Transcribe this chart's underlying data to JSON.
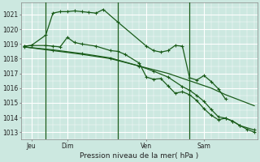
{
  "background_color": "#cce8e0",
  "grid_color": "#ffffff",
  "line_color": "#1a5c1a",
  "title": "Pression niveau de la mer( hPa )",
  "xlabel_ticks": [
    "Jeu",
    "Dim",
    "Ven",
    "Sam"
  ],
  "xlabel_tick_positions": [
    0.5,
    3.0,
    8.5,
    12.5
  ],
  "vline_positions": [
    1.5,
    6.5,
    11.5
  ],
  "ylim": [
    1012.5,
    1021.8
  ],
  "yticks": [
    1013,
    1014,
    1015,
    1016,
    1017,
    1018,
    1019,
    1020,
    1021
  ],
  "xlim": [
    -0.2,
    16.2
  ],
  "line1_x": [
    0,
    0.5,
    1.5,
    2.0,
    2.5,
    3.0,
    3.5,
    4.0,
    4.5,
    5.0,
    5.5,
    6.5,
    8.5,
    9.0,
    9.5,
    10.0,
    10.5,
    11.0,
    11.5,
    12.0,
    12.5,
    13.0,
    13.5,
    14.0
  ],
  "line1_y": [
    1018.85,
    1018.9,
    1019.6,
    1021.1,
    1021.2,
    1021.2,
    1021.25,
    1021.2,
    1021.15,
    1021.1,
    1021.35,
    1020.5,
    1018.85,
    1018.55,
    1018.45,
    1018.55,
    1018.9,
    1018.85,
    1016.7,
    1016.55,
    1016.85,
    1016.45,
    1015.95,
    1015.25
  ],
  "line2_x": [
    0,
    2,
    4,
    6,
    8,
    10,
    11.5,
    13,
    14,
    16
  ],
  "line2_y": [
    1018.8,
    1018.55,
    1018.3,
    1018.0,
    1017.5,
    1017.0,
    1016.5,
    1016.0,
    1015.55,
    1014.8
  ],
  "line3_x": [
    0,
    0.5,
    1.5,
    2.0,
    2.5,
    3.0,
    3.5,
    4.0,
    5.0,
    6.0,
    6.5,
    7.0,
    8.0,
    8.5,
    9.0,
    9.5,
    10.0,
    10.5,
    11.0,
    11.5,
    12.0,
    12.5,
    13.0,
    13.5,
    14.0,
    14.5,
    15.0,
    16.0
  ],
  "line3_y": [
    1018.85,
    1018.9,
    1018.9,
    1018.85,
    1018.8,
    1019.45,
    1019.1,
    1019.0,
    1018.85,
    1018.55,
    1018.5,
    1018.3,
    1017.7,
    1016.75,
    1016.6,
    1016.65,
    1016.15,
    1015.65,
    1015.75,
    1015.55,
    1015.15,
    1014.6,
    1014.15,
    1013.85,
    1013.95,
    1013.75,
    1013.45,
    1013.15
  ],
  "line4_x": [
    0,
    2,
    4,
    6,
    8,
    9,
    10,
    11,
    11.5,
    12,
    12.5,
    13,
    13.5,
    14,
    14.5,
    15.0,
    15.5,
    16.0
  ],
  "line4_y": [
    1018.8,
    1018.6,
    1018.35,
    1018.05,
    1017.5,
    1017.15,
    1016.75,
    1016.1,
    1015.85,
    1015.5,
    1015.1,
    1014.55,
    1014.05,
    1013.95,
    1013.75,
    1013.45,
    1013.2,
    1013.0
  ]
}
